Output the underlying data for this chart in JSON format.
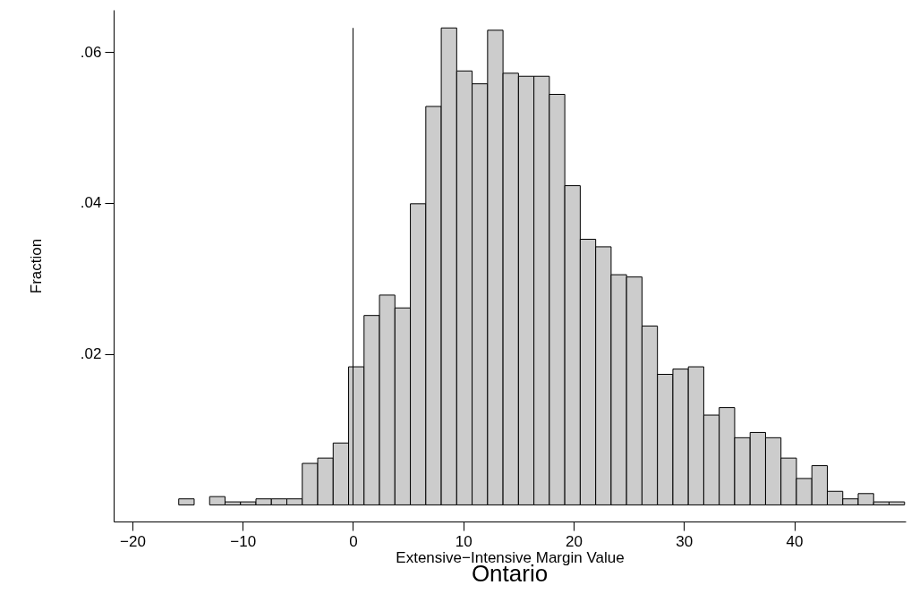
{
  "chart_data": {
    "type": "histogram",
    "title": "Ontario",
    "xlabel": "Extensive−Intensive Margin Value",
    "ylabel": "Fraction",
    "bins": [
      -15.8,
      -14.4,
      -13.0,
      -11.6,
      -10.2,
      -8.8,
      -7.4,
      -6.0,
      -4.6,
      -3.2,
      -1.8,
      -0.4,
      1.0,
      2.4,
      3.8,
      5.2,
      6.6,
      8.0,
      9.4,
      10.8,
      12.2,
      13.6,
      15.0,
      16.4,
      17.8,
      19.2,
      20.6,
      22.0,
      23.4,
      24.8,
      26.2,
      27.6,
      29.0,
      30.4,
      31.8,
      33.2,
      34.6,
      36.0,
      37.4,
      38.8,
      40.2,
      41.6,
      43.0,
      44.4,
      45.8,
      47.2,
      48.6,
      50.0
    ],
    "values": [
      0.0008,
      0,
      0.0011,
      0.0004,
      0.0004,
      0.0008,
      0.0008,
      0.0008,
      0.0055,
      0.0062,
      0.0082,
      0.0183,
      0.0251,
      0.0278,
      0.0261,
      0.0399,
      0.0528,
      0.0632,
      0.0575,
      0.0558,
      0.0629,
      0.0572,
      0.0568,
      0.0568,
      0.0544,
      0.0423,
      0.0352,
      0.0342,
      0.0305,
      0.0302,
      0.0237,
      0.0173,
      0.018,
      0.0183,
      0.0119,
      0.0129,
      0.0089,
      0.0096,
      0.0089,
      0.0062,
      0.0035,
      0.0052,
      0.0018,
      0.0008,
      0.0015,
      0.0004,
      0.0004
    ],
    "color": "#cccccc",
    "xlim": [
      -21.7,
      50.1
    ],
    "ylim": [
      -0.0022,
      0.0656
    ],
    "xticks": [
      {
        "value": -20,
        "label": "−20"
      },
      {
        "value": -10,
        "label": "−10"
      },
      0,
      10,
      20,
      30,
      40
    ],
    "yticks": [
      {
        "value": 0.02,
        "label": ".02"
      },
      {
        "value": 0.04,
        "label": ".04"
      },
      {
        "value": 0.06,
        "label": ".06"
      }
    ],
    "ref_lines": [
      {
        "axis": "x",
        "value": 0,
        "label": null,
        "color": "#000000"
      }
    ],
    "grid": false
  }
}
